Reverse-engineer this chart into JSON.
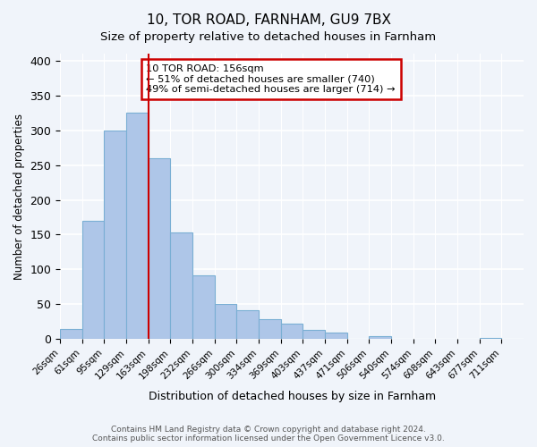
{
  "title": "10, TOR ROAD, FARNHAM, GU9 7BX",
  "subtitle": "Size of property relative to detached houses in Farnham",
  "xlabel": "Distribution of detached houses by size in Farnham",
  "ylabel": "Number of detached properties",
  "bin_labels": [
    "26sqm",
    "61sqm",
    "95sqm",
    "129sqm",
    "163sqm",
    "198sqm",
    "232sqm",
    "266sqm",
    "300sqm",
    "334sqm",
    "369sqm",
    "403sqm",
    "437sqm",
    "471sqm",
    "506sqm",
    "540sqm",
    "574sqm",
    "608sqm",
    "643sqm",
    "677sqm",
    "711sqm"
  ],
  "bar_heights": [
    15,
    170,
    300,
    325,
    260,
    153,
    91,
    50,
    42,
    29,
    22,
    13,
    10,
    0,
    4,
    0,
    1,
    0,
    0,
    2,
    1
  ],
  "bar_color": "#aec6e8",
  "bar_edge_color": "#7aafd4",
  "vline_x": 4,
  "vline_color": "#cc0000",
  "annotation_text": "10 TOR ROAD: 156sqm\n← 51% of detached houses are smaller (740)\n49% of semi-detached houses are larger (714) →",
  "annotation_box_color": "#cc0000",
  "ylim": [
    0,
    410
  ],
  "yticks": [
    0,
    50,
    100,
    150,
    200,
    250,
    300,
    350,
    400
  ],
  "footer_line1": "Contains HM Land Registry data © Crown copyright and database right 2024.",
  "footer_line2": "Contains public sector information licensed under the Open Government Licence v3.0.",
  "bg_color": "#f0f4fa",
  "plot_bg_color": "#f0f4fa"
}
